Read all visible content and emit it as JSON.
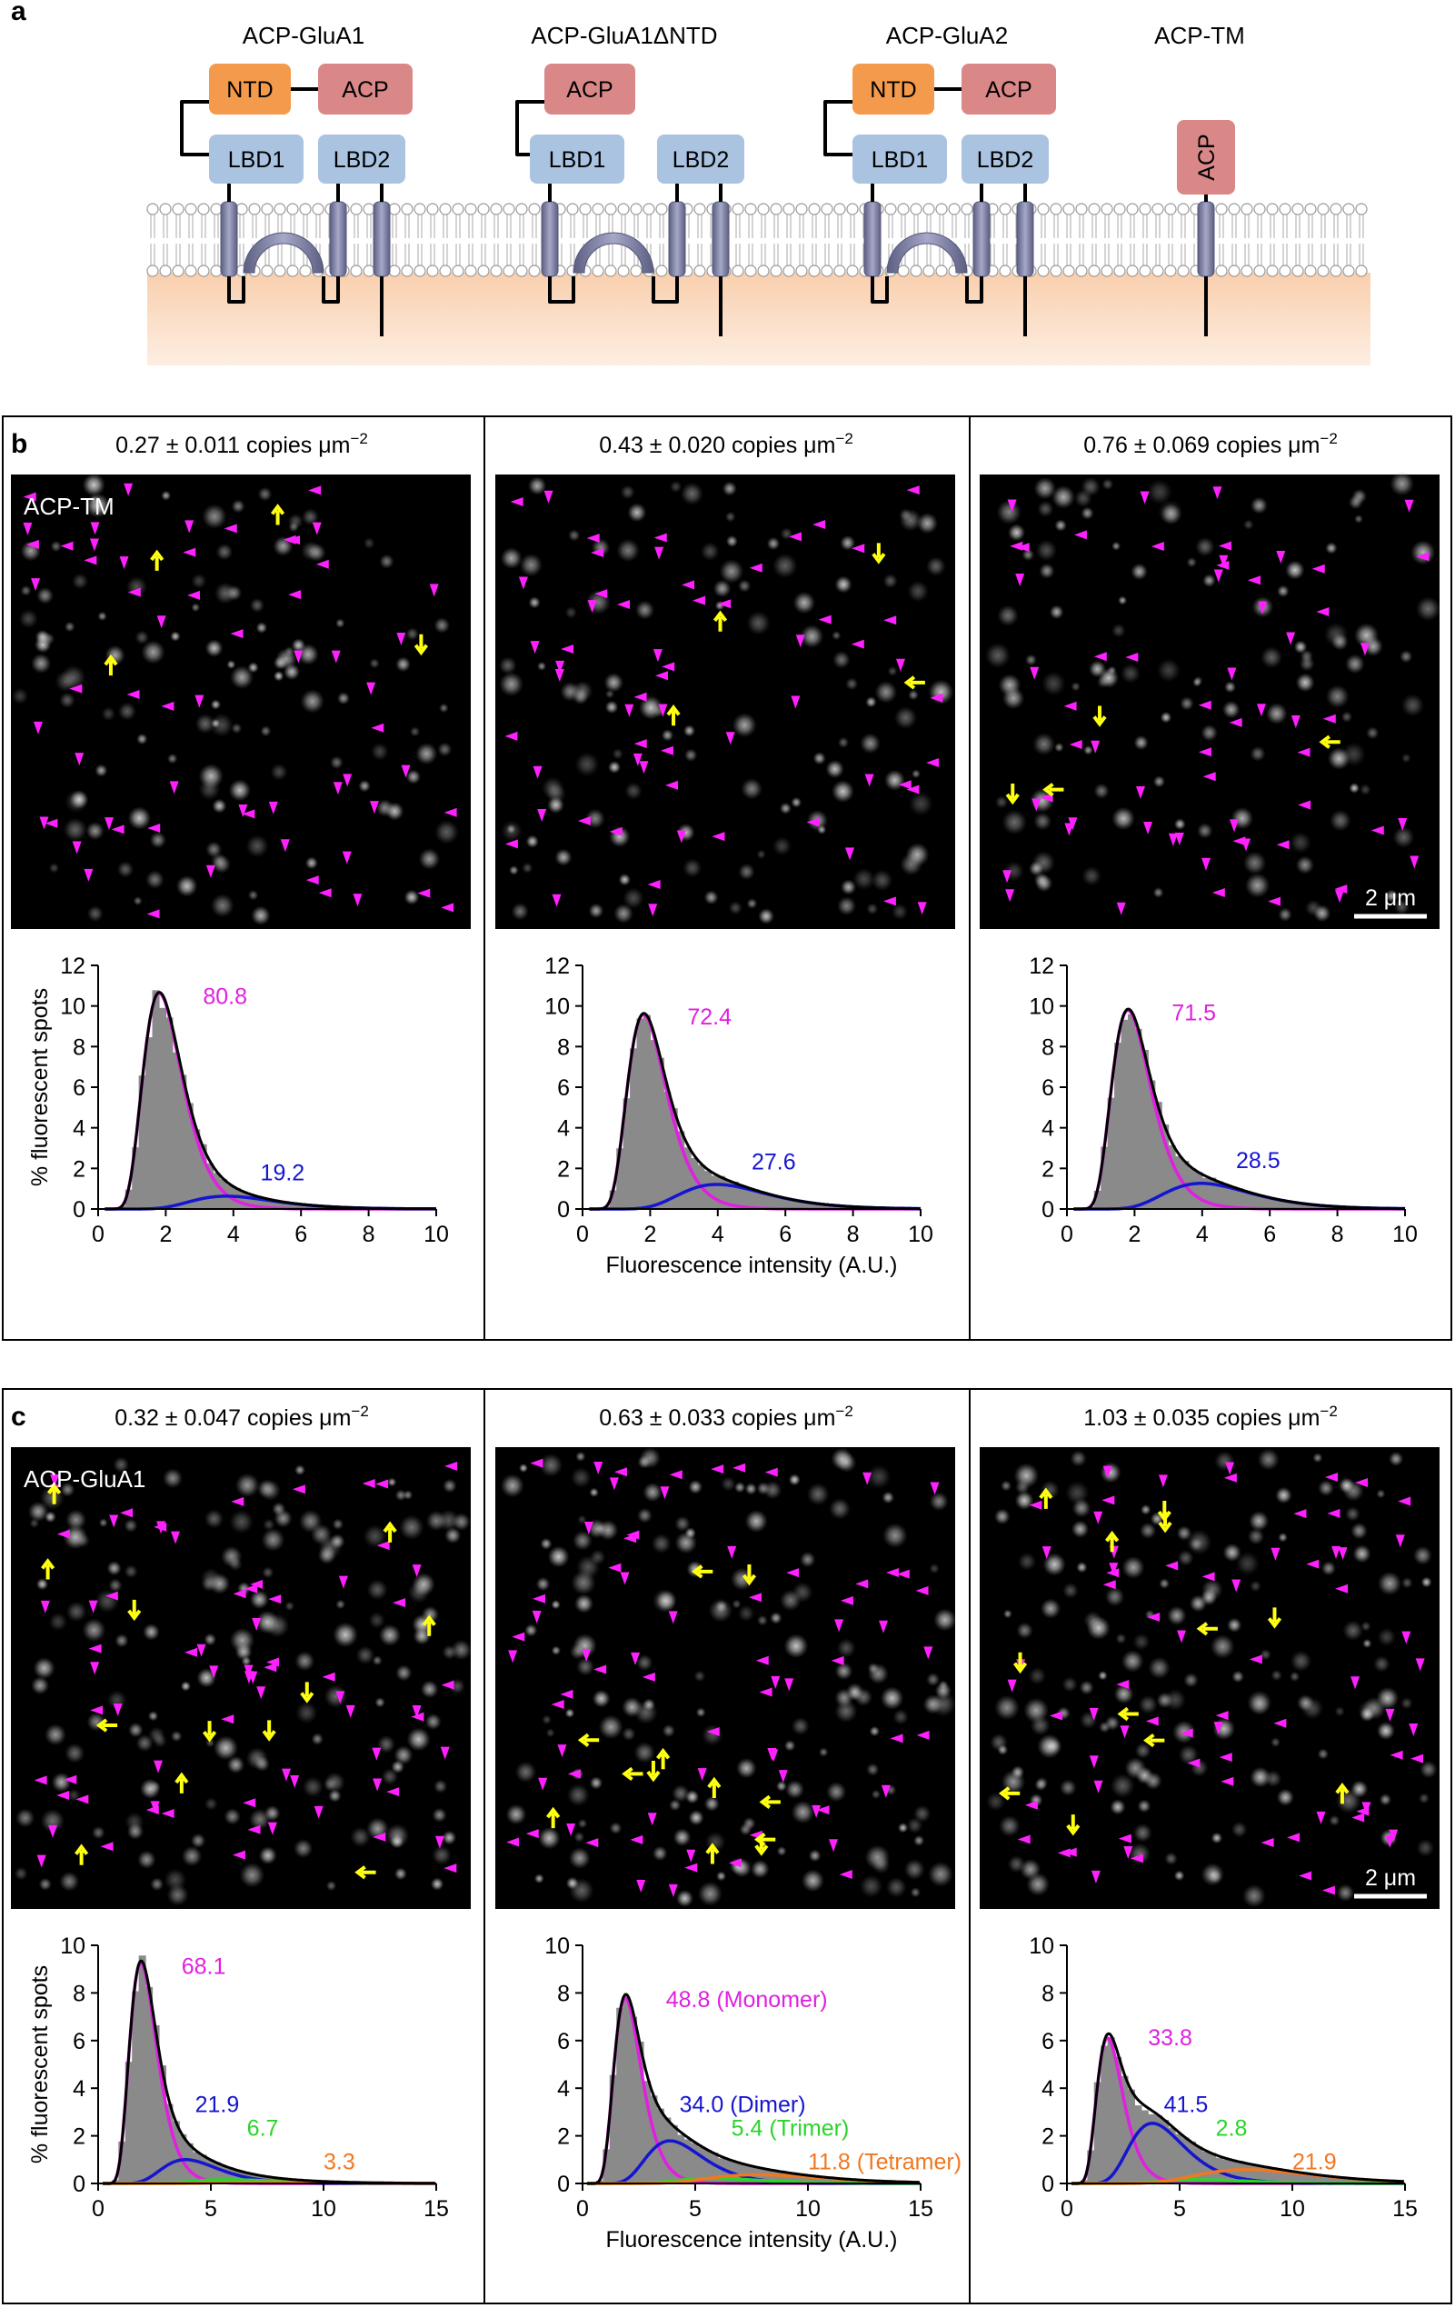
{
  "panel_a": {
    "label": "a",
    "constructs": [
      {
        "name": "ACP-GluA1",
        "domains": {
          "ntd": "NTD",
          "acp": "ACP",
          "lbd1": "LBD1",
          "lbd2": "LBD2"
        }
      },
      {
        "name": "ACP-GluA1ΔNTD",
        "domains": {
          "acp": "ACP",
          "lbd1": "LBD1",
          "lbd2": "LBD2"
        }
      },
      {
        "name": "ACP-GluA2",
        "domains": {
          "ntd": "NTD",
          "acp": "ACP",
          "lbd1": "LBD1",
          "lbd2": "LBD2"
        }
      },
      {
        "name": "ACP-TM",
        "domains": {
          "acp": "ACP"
        }
      }
    ],
    "colors": {
      "ntd": "#f39a4c",
      "acp": "#d98787",
      "lbd": "#a9c3e0",
      "tm": "#7d7fa3",
      "cytoplasm": "#fbd9c0"
    }
  },
  "panel_b": {
    "label": "b",
    "image_label": "ACP-TM",
    "densities": [
      "0.27 ± 0.011 copies μm",
      "0.43 ± 0.020 copies μm",
      "0.76 ± 0.069 copies μm"
    ],
    "density_exponent": "−2",
    "scale_bar": "2 μm",
    "ylabel": "% fluorescent spots",
    "xlabel": "Fluorescence intensity (A.U.)"
  },
  "panel_c": {
    "label": "c",
    "image_label": "ACP-GluA1",
    "densities": [
      "0.32 ± 0.047 copies μm",
      "0.63 ± 0.033 copies μm",
      "1.03 ± 0.035 copies μm"
    ],
    "density_exponent": "−2",
    "scale_bar": "2 μm",
    "ylabel": "% fluorescent spots",
    "xlabel": "Fluorescence intensity (A.U.)"
  },
  "chart_data": [
    {
      "type": "bar",
      "panel": "b",
      "title": "0.27 copies",
      "xlim": [
        0,
        10
      ],
      "ylim": [
        0,
        12
      ],
      "xticks": [
        0,
        2,
        4,
        6,
        8,
        10
      ],
      "yticks": [
        0,
        2,
        4,
        6,
        8,
        10,
        12
      ],
      "peak": 2.0,
      "bin": 0.2,
      "components": [
        {
          "name": "Monomer",
          "value": "80.8",
          "mean": 2.0,
          "amp": 10.1,
          "color": "#e020e0"
        },
        {
          "name": "Dimer",
          "value": "19.2",
          "mean": 4.2,
          "amp": 0.6,
          "color": "#1515d0"
        }
      ]
    },
    {
      "type": "bar",
      "panel": "b",
      "title": "0.43 copies",
      "xlim": [
        0,
        10
      ],
      "ylim": [
        0,
        12
      ],
      "xticks": [
        0,
        2,
        4,
        6,
        8,
        10
      ],
      "yticks": [
        0,
        2,
        4,
        6,
        8,
        10,
        12
      ],
      "peak": 2.0,
      "bin": 0.2,
      "components": [
        {
          "name": "Monomer",
          "value": "72.4",
          "mean": 2.0,
          "amp": 9.1,
          "color": "#e020e0"
        },
        {
          "name": "Dimer",
          "value": "27.6",
          "mean": 4.4,
          "amp": 1.15,
          "color": "#1515d0"
        }
      ]
    },
    {
      "type": "bar",
      "panel": "b",
      "title": "0.76 copies",
      "xlim": [
        0,
        10
      ],
      "ylim": [
        0,
        12
      ],
      "xticks": [
        0,
        2,
        4,
        6,
        8,
        10
      ],
      "yticks": [
        0,
        2,
        4,
        6,
        8,
        10,
        12
      ],
      "peak": 2.0,
      "bin": 0.2,
      "components": [
        {
          "name": "Monomer",
          "value": "71.5",
          "mean": 2.0,
          "amp": 9.3,
          "color": "#e020e0"
        },
        {
          "name": "Dimer",
          "value": "28.5",
          "mean": 4.4,
          "amp": 1.2,
          "color": "#1515d0"
        }
      ]
    },
    {
      "type": "bar",
      "panel": "c",
      "title": "0.32 copies",
      "xlim": [
        0,
        15
      ],
      "ylim": [
        0,
        10
      ],
      "xticks": [
        0,
        5,
        10,
        15
      ],
      "yticks": [
        0,
        2,
        4,
        6,
        8,
        10
      ],
      "peak": 2.0,
      "bin": 0.3,
      "components": [
        {
          "name": "Monomer",
          "value": "68.1",
          "mean": 2.1,
          "amp": 8.8,
          "color": "#e020e0"
        },
        {
          "name": "Dimer",
          "value": "21.9",
          "mean": 4.3,
          "amp": 0.95,
          "color": "#1515d0"
        },
        {
          "name": "Trimer",
          "value": "6.7",
          "mean": 6.4,
          "amp": 0.15,
          "color": "#2ad42a"
        },
        {
          "name": "Tetramer",
          "value": "3.3",
          "mean": 8.6,
          "amp": 0.05,
          "color": "#f07820"
        }
      ]
    },
    {
      "type": "bar",
      "panel": "c",
      "title": "0.63 copies",
      "xlim": [
        0,
        15
      ],
      "ylim": [
        0,
        10
      ],
      "xticks": [
        0,
        5,
        10,
        15
      ],
      "yticks": [
        0,
        2,
        4,
        6,
        8,
        10
      ],
      "peak": 2.0,
      "bin": 0.3,
      "components": [
        {
          "name": "Monomer",
          "value": "48.8 (Monomer)",
          "mean": 2.1,
          "amp": 7.4,
          "color": "#e020e0"
        },
        {
          "name": "Dimer",
          "value": "34.0 (Dimer)",
          "mean": 4.3,
          "amp": 1.7,
          "color": "#1515d0"
        },
        {
          "name": "Trimer",
          "value": "5.4 (Trimer)",
          "mean": 6.4,
          "amp": 0.2,
          "color": "#2ad42a"
        },
        {
          "name": "Tetramer",
          "value": "11.8 (Tetramer)",
          "mean": 8.6,
          "amp": 0.35,
          "color": "#f07820"
        }
      ]
    },
    {
      "type": "bar",
      "panel": "c",
      "title": "1.03 copies",
      "xlim": [
        0,
        15
      ],
      "ylim": [
        0,
        10
      ],
      "xticks": [
        0,
        5,
        10,
        15
      ],
      "yticks": [
        0,
        2,
        4,
        6,
        8,
        10
      ],
      "peak": 2.0,
      "bin": 0.3,
      "components": [
        {
          "name": "Monomer",
          "value": "33.8",
          "mean": 2.0,
          "amp": 5.8,
          "color": "#e020e0"
        },
        {
          "name": "Dimer",
          "value": "41.5",
          "mean": 4.2,
          "amp": 2.4,
          "color": "#1515d0"
        },
        {
          "name": "Trimer",
          "value": "2.8",
          "mean": 6.4,
          "amp": 0.15,
          "color": "#2ad42a"
        },
        {
          "name": "Tetramer",
          "value": "21.9",
          "mean": 8.8,
          "amp": 0.55,
          "color": "#f07820"
        }
      ]
    }
  ]
}
